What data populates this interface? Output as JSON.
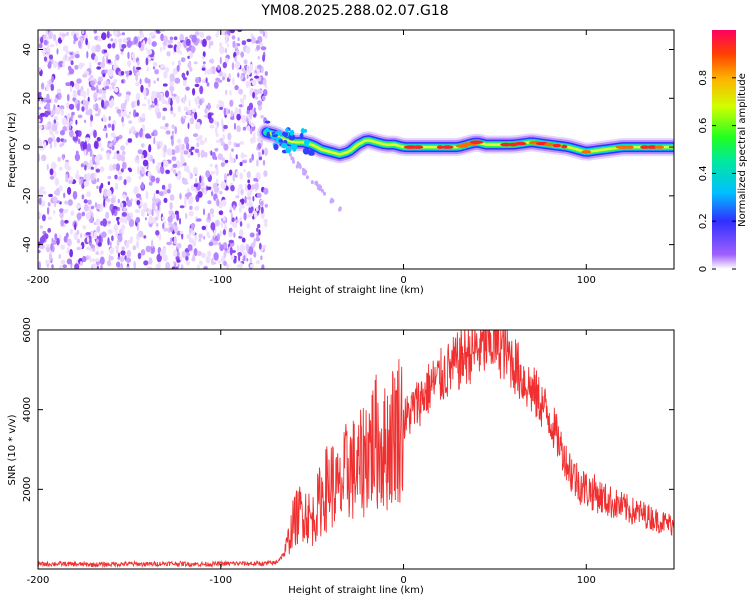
{
  "title": "YM08.2025.288.02.07.G18",
  "chart_data": [
    {
      "type": "heatmap",
      "xlabel": "Height of straight line (km)",
      "ylabel": "Frequency (Hz)",
      "xlim": [
        -200,
        148
      ],
      "ylim": [
        -50,
        48
      ],
      "x_ticks": [
        -200,
        -100,
        0,
        100
      ],
      "y_ticks": [
        -40,
        -20,
        0,
        20,
        40
      ],
      "colorbar": {
        "label": "Normalized spectral amplitude",
        "range": [
          0,
          1
        ],
        "ticks": [
          0.0,
          0.2,
          0.4,
          0.6,
          0.8
        ]
      },
      "regions": [
        {
          "name": "noise",
          "x_range": [
            -200,
            -75
          ],
          "y_range": [
            -50,
            48
          ]
        },
        {
          "name": "signal-track",
          "x": [
            -75,
            -70,
            -65,
            -60,
            -55,
            -50,
            -45,
            -40,
            -35,
            -30,
            -25,
            -20,
            -15,
            -10,
            -5,
            0,
            10,
            20,
            30,
            40,
            45,
            50,
            60,
            70,
            80,
            90,
            100,
            110,
            120,
            130,
            140,
            148
          ],
          "y": [
            6,
            5,
            3,
            2,
            2,
            1,
            -1,
            -2,
            -3,
            -2,
            1,
            3,
            2,
            1,
            1,
            0,
            0,
            0,
            0,
            2,
            1,
            1,
            1,
            2,
            1,
            0,
            -2,
            -1,
            0,
            0,
            0,
            0
          ]
        }
      ]
    },
    {
      "type": "line",
      "xlabel": "Height of straight line (km)",
      "ylabel": "SNR (10 * v/v)",
      "xlim": [
        -200,
        148
      ],
      "ylim": [
        0,
        6000
      ],
      "x_ticks": [
        -200,
        -100,
        0,
        100
      ],
      "y_ticks": [
        2000,
        4000,
        6000
      ],
      "color": "#f03030",
      "series": [
        {
          "name": "SNR",
          "x": [
            -200,
            -190,
            -180,
            -170,
            -160,
            -150,
            -140,
            -130,
            -120,
            -110,
            -100,
            -90,
            -80,
            -70,
            -65,
            -60,
            -55,
            -50,
            -45,
            -40,
            -35,
            -30,
            -25,
            -20,
            -15,
            -10,
            -5,
            0,
            5,
            10,
            15,
            20,
            25,
            30,
            35,
            40,
            45,
            50,
            55,
            60,
            65,
            70,
            75,
            80,
            85,
            90,
            95,
            100,
            105,
            110,
            115,
            120,
            125,
            130,
            135,
            140,
            145,
            148
          ],
          "values": [
            120,
            130,
            120,
            110,
            120,
            130,
            120,
            140,
            130,
            120,
            130,
            140,
            130,
            150,
            400,
            1200,
            1500,
            1200,
            1800,
            2200,
            1900,
            2600,
            2400,
            3000,
            3200,
            3000,
            3500,
            3700,
            4000,
            4300,
            4600,
            4800,
            5000,
            5200,
            5400,
            5500,
            5600,
            5700,
            5500,
            5200,
            4800,
            4500,
            4200,
            3800,
            3200,
            2600,
            2200,
            2000,
            1900,
            1750,
            1650,
            1550,
            1450,
            1400,
            1300,
            1200,
            1150,
            1100
          ]
        }
      ]
    }
  ]
}
